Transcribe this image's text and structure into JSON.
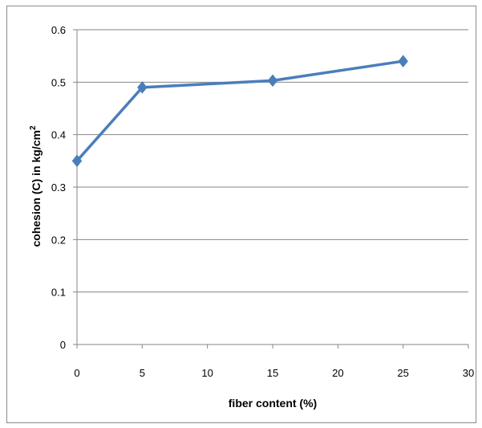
{
  "chart_data": {
    "type": "scatter",
    "title": "",
    "xlabel": "fiber content (%)",
    "ylabel": "cohesion (C) in kg/cm",
    "ylabel_superscript": "2",
    "xlim": [
      0,
      30
    ],
    "ylim": [
      0,
      0.6
    ],
    "x_ticks": [
      "0",
      "5",
      "10",
      "15",
      "20",
      "25",
      "30"
    ],
    "y_ticks": [
      "0",
      "0.1",
      "0.2",
      "0.3",
      "0.4",
      "0.5",
      "0.6"
    ],
    "grid": "horizontal",
    "legend": "none",
    "series": [
      {
        "x": [
          0,
          5,
          15,
          25
        ],
        "y": [
          0.35,
          0.49,
          0.503,
          0.54
        ],
        "color": "#4a7ebb",
        "marker": "diamond",
        "line": "straight"
      }
    ]
  }
}
